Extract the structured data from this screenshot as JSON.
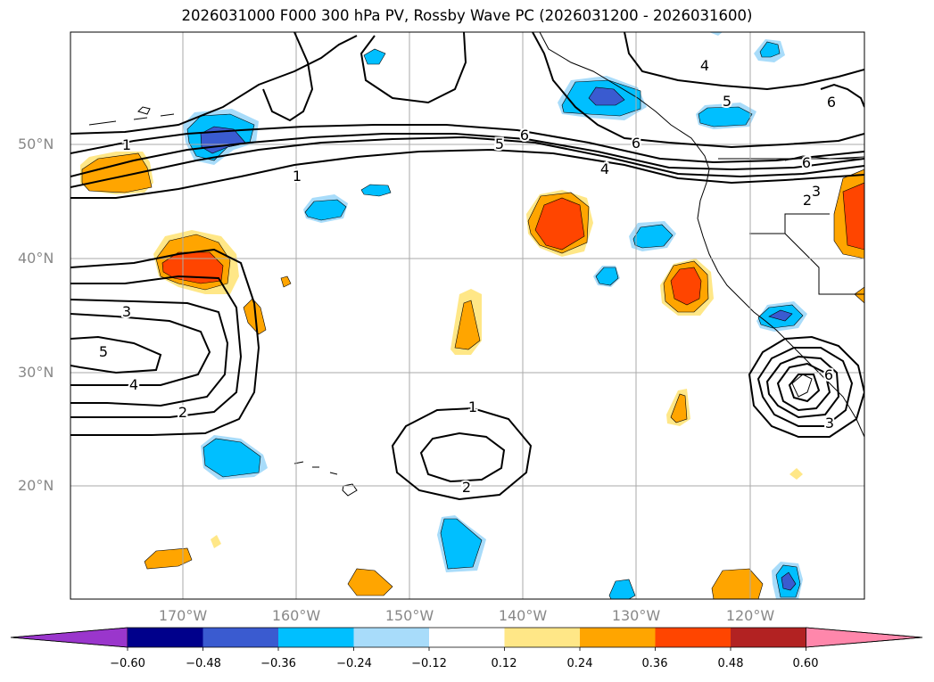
{
  "title": "2026031000 F000 300 hPa PV, Rossby Wave PC (2026031200 - 2026031600)",
  "lat_labels": [
    "50°N",
    "40°N",
    "30°N",
    "20°N"
  ],
  "lon_labels": [
    "170°W",
    "160°W",
    "150°W",
    "140°W",
    "130°W",
    "120°W"
  ],
  "colorbar": {
    "ticks": [
      "−0.60",
      "−0.48",
      "−0.36",
      "−0.24",
      "−0.12",
      "0.12",
      "0.24",
      "0.36",
      "0.48",
      "0.60"
    ],
    "colors": [
      "#9a36cc",
      "#00008b",
      "#3a5bd0",
      "#00bfff",
      "#a8dcfa",
      "#ffffff",
      "#ffe787",
      "#ffa500",
      "#ff4500",
      "#b22222",
      "#ff87ab"
    ]
  },
  "contour_labels": [
    "1",
    "5",
    "6",
    "6",
    "4",
    "1",
    "3",
    "5",
    "4",
    "2",
    "1",
    "2",
    "4",
    "5",
    "6",
    "6",
    "3",
    "2",
    "3",
    "6"
  ]
}
